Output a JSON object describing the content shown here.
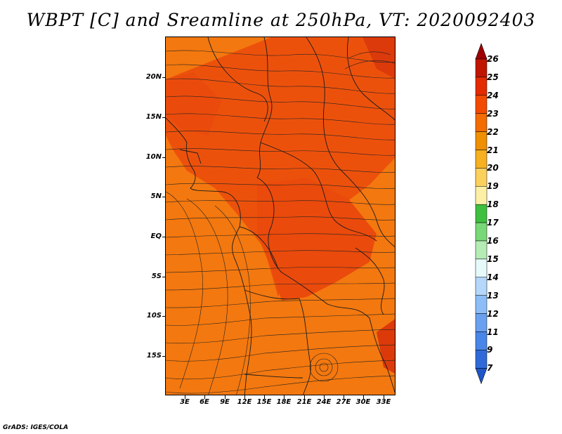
{
  "title": "WBPT [C] and Sreamline at 250hPa, VT: 2020092403",
  "footer": "GrADS: IGES/COLA",
  "y_axis_labels": [
    "20N",
    "15N",
    "10N",
    "5N",
    "EQ",
    "5S",
    "10S",
    "15S"
  ],
  "x_axis_labels": [
    "3E",
    "6E",
    "9E",
    "12E",
    "15E",
    "18E",
    "21E",
    "24E",
    "27E",
    "30E",
    "33E"
  ],
  "colorbar": {
    "labels": [
      "26",
      "25",
      "24",
      "23",
      "22",
      "21",
      "20",
      "19",
      "18",
      "17",
      "16",
      "15",
      "14",
      "13",
      "12",
      "11",
      "9",
      "7"
    ],
    "colors": [
      "#a00000",
      "#c01500",
      "#e42a00",
      "#f34a00",
      "#f36c00",
      "#f08f00",
      "#f6b020",
      "#fbd05c",
      "#fdf0a6",
      "#3fbf3f",
      "#78d878",
      "#b4ecb4",
      "#e6fafa",
      "#b4d7fa",
      "#8cbdf6",
      "#6aa0f0",
      "#4a86e8",
      "#2f6ad8",
      "#1e55c8"
    ]
  },
  "map": {
    "field_colors": {
      "base": "#f3780f",
      "warm": "#ea4a0c",
      "hot": "#dc3a0a"
    }
  }
}
